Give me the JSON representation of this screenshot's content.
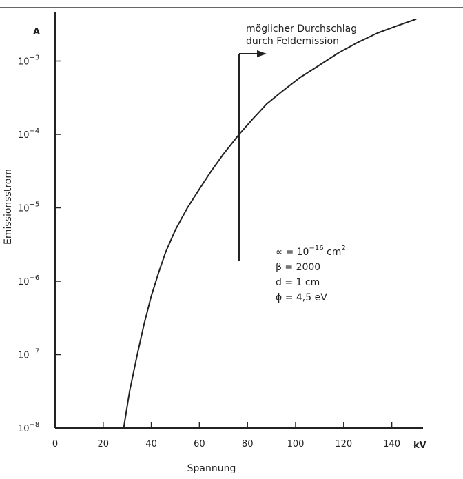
{
  "chart_data": {
    "type": "line",
    "title": "",
    "xlabel": "Spannung",
    "ylabel": "Emissionsstrom",
    "x_unit": "kV",
    "y_unit": "A",
    "xlim": [
      0,
      150
    ],
    "ylim": [
      1e-08,
      0.004
    ],
    "y_scale": "log",
    "grid": false,
    "x_ticks": [
      {
        "value": 0,
        "label": "0"
      },
      {
        "value": 20,
        "label": "20"
      },
      {
        "value": 40,
        "label": "40"
      },
      {
        "value": 60,
        "label": "60"
      },
      {
        "value": 80,
        "label": "80"
      },
      {
        "value": 100,
        "label": "100"
      },
      {
        "value": 120,
        "label": "120"
      },
      {
        "value": 140,
        "label": "140"
      }
    ],
    "y_ticks": [
      {
        "value": 1e-08,
        "base": "10",
        "exp": "−8"
      },
      {
        "value": 1e-07,
        "base": "10",
        "exp": "−7"
      },
      {
        "value": 1e-06,
        "base": "10",
        "exp": "−6"
      },
      {
        "value": 1e-05,
        "base": "10",
        "exp": "−5"
      },
      {
        "value": 0.0001,
        "base": "10",
        "exp": "−4"
      },
      {
        "value": 0.001,
        "base": "10",
        "exp": "−3"
      }
    ],
    "series": [
      {
        "color": "#222222",
        "x": [
          28.5,
          31,
          34,
          37,
          40,
          43,
          46,
          50,
          55,
          60,
          65,
          70,
          76.5,
          82,
          88,
          95,
          102,
          110,
          118,
          126,
          134,
          142,
          150
        ],
        "y": [
          1e-08,
          3.2e-08,
          9.5e-08,
          2.6e-07,
          6.3e-07,
          1.3e-06,
          2.5e-06,
          5e-06,
          1e-05,
          1.8e-05,
          3.2e-05,
          5.4e-05,
          0.0001,
          0.00016,
          0.00026,
          0.0004,
          0.0006,
          0.00088,
          0.0013,
          0.0018,
          0.0024,
          0.003,
          0.0037
        ]
      }
    ],
    "annotations": {
      "breakdown": {
        "line1": "möglicher Durchschlag",
        "line2": "durch Feldemission",
        "x_value": 76.5,
        "y_from": 2e-06,
        "y_to": 0.004,
        "arrow": "right"
      },
      "params": [
        {
          "symbol": "∝",
          "text": " = 10",
          "sup": "−16",
          "tail": " cm",
          "sup2": "2"
        },
        {
          "symbol": "β",
          "text": " = 2000",
          "sup": "",
          "tail": "",
          "sup2": ""
        },
        {
          "symbol": "d",
          "text": " = 1 cm",
          "sup": "",
          "tail": "",
          "sup2": ""
        },
        {
          "symbol": "ϕ",
          "text": " = 4,5 eV",
          "sup": "",
          "tail": "",
          "sup2": ""
        }
      ]
    }
  }
}
